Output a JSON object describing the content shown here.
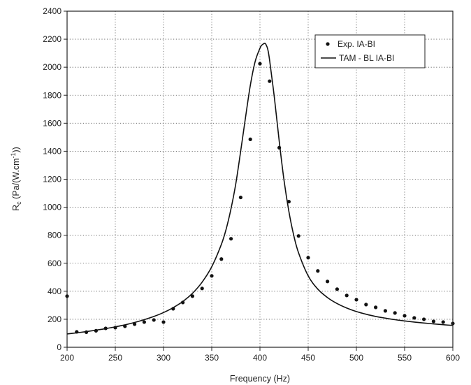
{
  "chart_data": {
    "type": "scatter",
    "title": "",
    "xlabel": "Frequency (Hz)",
    "ylabel": {
      "main": "R",
      "sub": "c",
      "unit_pre": " (Pa/(W.cm",
      "sup": "-1",
      "unit_post": "))"
    },
    "xlim": [
      200,
      600
    ],
    "ylim": [
      0,
      2400
    ],
    "xticks": [
      200,
      250,
      300,
      350,
      400,
      450,
      500,
      550,
      600
    ],
    "yticks": [
      0,
      200,
      400,
      600,
      800,
      1000,
      1200,
      1400,
      1600,
      1800,
      2000,
      2200,
      2400
    ],
    "grid": true,
    "legend_position": "top-right",
    "series": [
      {
        "name": "Exp. IA-BI",
        "style": "markers",
        "color": "#111111",
        "x": [
          200,
          210,
          220,
          230,
          240,
          250,
          260,
          270,
          280,
          290,
          300,
          310,
          320,
          330,
          340,
          350,
          360,
          370,
          380,
          390,
          400,
          410,
          420,
          430,
          440,
          450,
          460,
          470,
          480,
          490,
          500,
          510,
          520,
          530,
          540,
          550,
          560,
          570,
          580,
          590,
          600
        ],
        "y": [
          365,
          110,
          108,
          118,
          135,
          140,
          150,
          165,
          180,
          195,
          180,
          275,
          320,
          365,
          420,
          510,
          630,
          775,
          1070,
          1485,
          2025,
          1900,
          1425,
          1040,
          795,
          640,
          545,
          470,
          415,
          370,
          340,
          305,
          285,
          260,
          245,
          225,
          210,
          200,
          185,
          180,
          170
        ]
      },
      {
        "name": "TAM - BL IA-BI",
        "style": "line",
        "color": "#111111",
        "x": [
          200,
          210,
          220,
          230,
          240,
          250,
          260,
          270,
          280,
          290,
          300,
          310,
          320,
          330,
          340,
          350,
          360,
          365,
          370,
          375,
          380,
          385,
          390,
          395,
          400,
          402,
          404,
          405,
          406,
          408,
          410,
          415,
          420,
          425,
          430,
          435,
          440,
          450,
          460,
          470,
          480,
          490,
          500,
          510,
          520,
          530,
          540,
          550,
          560,
          570,
          580,
          590,
          600
        ],
        "y": [
          95,
          103,
          112,
          122,
          133,
          146,
          160,
          177,
          197,
          220,
          248,
          283,
          327,
          385,
          465,
          575,
          735,
          845,
          990,
          1170,
          1400,
          1640,
          1870,
          2040,
          2135,
          2158,
          2168,
          2170,
          2165,
          2130,
          2050,
          1780,
          1470,
          1190,
          970,
          800,
          675,
          510,
          415,
          355,
          312,
          280,
          255,
          236,
          220,
          208,
          197,
          188,
          180,
          173,
          167,
          161,
          156
        ]
      }
    ]
  }
}
